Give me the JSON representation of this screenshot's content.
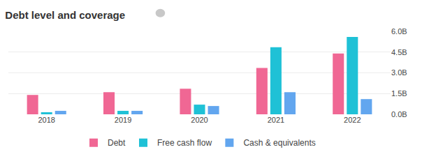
{
  "chart_data": {
    "type": "bar",
    "title": "Debt level and coverage",
    "categories": [
      "2018",
      "2019",
      "2020",
      "2021",
      "2022"
    ],
    "series": [
      {
        "name": "Debt",
        "color": "#f06794",
        "values": [
          1.4,
          1.6,
          1.85,
          3.35,
          4.4
        ]
      },
      {
        "name": "Free cash flow",
        "color": "#1fc1d6",
        "values": [
          0.15,
          0.25,
          0.7,
          4.85,
          5.6
        ]
      },
      {
        "name": "Cash & equivalents",
        "color": "#62a6ef",
        "values": [
          0.25,
          0.25,
          0.6,
          1.6,
          1.1
        ]
      }
    ],
    "ylim": [
      0,
      6
    ],
    "yticks": [
      {
        "value": 0,
        "label": "0.0B"
      },
      {
        "value": 1.5,
        "label": "1.5B"
      },
      {
        "value": 3,
        "label": "3.0B"
      },
      {
        "value": 4.5,
        "label": "4.5B"
      },
      {
        "value": 6,
        "label": "6.0B"
      }
    ],
    "grid": true,
    "legend": "bottom"
  }
}
